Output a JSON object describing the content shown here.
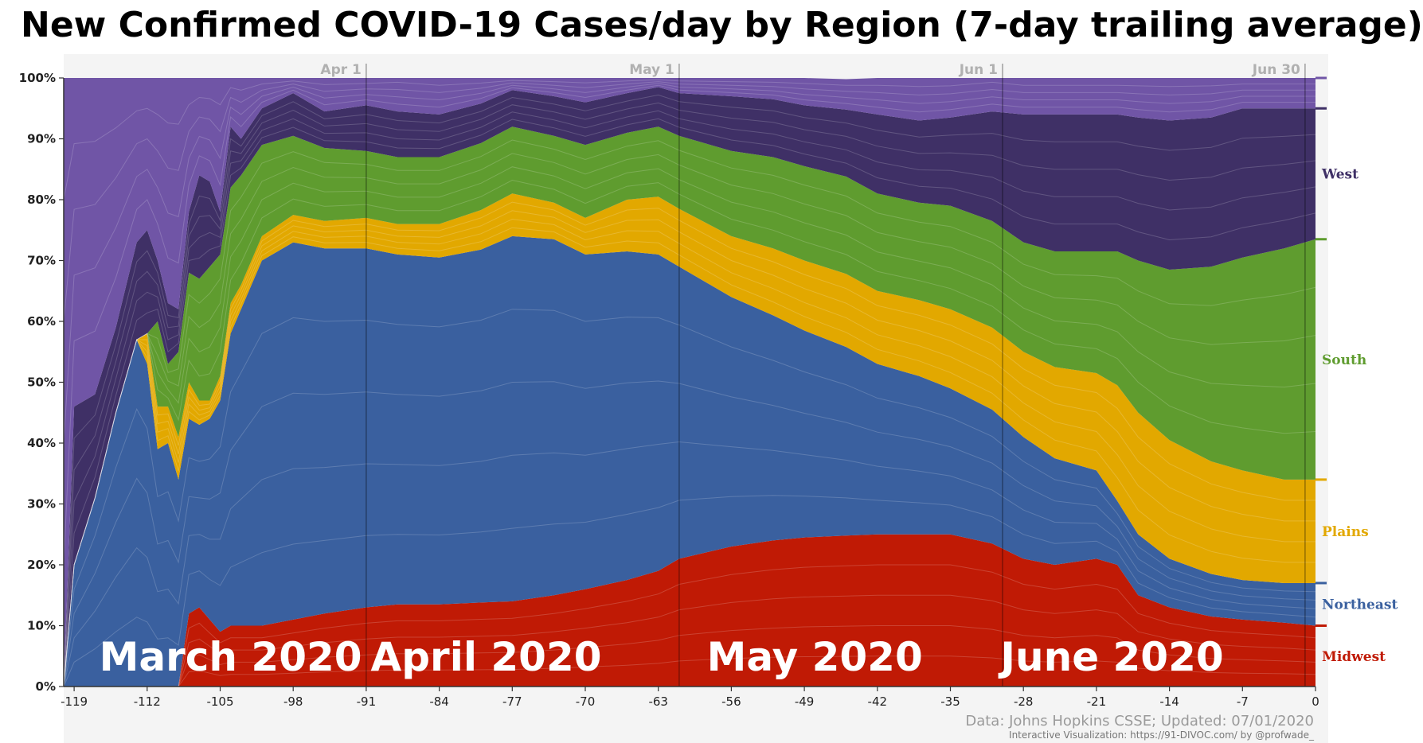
{
  "title": "New Confirmed COVID-19 Cases/day by Region (7-day trailing average)",
  "source": "Data: Johns Hopkins CSSE; Updated: 07/01/2020",
  "credit": "Interactive Visualization: https://91-DIVOC.com/ by @profwade_",
  "month_labels": [
    {
      "text": "March 2020",
      "x": -104
    },
    {
      "text": "April 2020",
      "x": -79.5
    },
    {
      "text": "May 2020",
      "x": -48
    },
    {
      "text": "June 2020",
      "x": -19.5
    }
  ],
  "date_markers": [
    {
      "label": "Apr 1",
      "x": -91
    },
    {
      "label": "May 1",
      "x": -61
    },
    {
      "label": "Jun 1",
      "x": -30
    },
    {
      "label": "Jun 30",
      "x": -1
    }
  ],
  "chart_data": {
    "type": "area",
    "stacked": true,
    "normalized": true,
    "xlabel": "",
    "ylabel": "",
    "xlim": [
      -120,
      0
    ],
    "ylim": [
      0,
      100
    ],
    "xticks": [
      -119,
      -112,
      -105,
      -98,
      -91,
      -84,
      -77,
      -70,
      -63,
      -56,
      -49,
      -42,
      -35,
      -28,
      -21,
      -14,
      -7,
      0
    ],
    "yticks": [
      0,
      10,
      20,
      30,
      40,
      50,
      60,
      70,
      80,
      90,
      100
    ],
    "ytick_labels": [
      "0%",
      "10%",
      "20%",
      "30%",
      "40%",
      "50%",
      "60%",
      "70%",
      "80%",
      "90%",
      "100%"
    ],
    "x": [
      -120,
      -119,
      -117,
      -115,
      -113,
      -112,
      -111,
      -110,
      -109,
      -108,
      -107,
      -106,
      -105,
      -104,
      -103,
      -101,
      -98,
      -95,
      -91,
      -88,
      -84,
      -80,
      -77,
      -73,
      -70,
      -66,
      -63,
      -61,
      -56,
      -52,
      -49,
      -45,
      -42,
      -38,
      -35,
      -31,
      -28,
      -25,
      -21,
      -19,
      -17,
      -14,
      -10,
      -7,
      -3,
      0
    ],
    "series": [
      {
        "name": "Midwest",
        "color": "#c01a05",
        "values": [
          0,
          0,
          0,
          0,
          0,
          0,
          0,
          0,
          0,
          12,
          13,
          11,
          9,
          10,
          10,
          10,
          11,
          12,
          13,
          13.5,
          13.5,
          13.8,
          14,
          15,
          16,
          17.5,
          19,
          21,
          23,
          24,
          24.5,
          24.8,
          25,
          25,
          25,
          23.5,
          21,
          20,
          21,
          20,
          15,
          13,
          11.5,
          11,
          10.5,
          10
        ]
      },
      {
        "name": "Northeast",
        "color": "#3a609f",
        "values": [
          0,
          20,
          31,
          45,
          57,
          53,
          39,
          40,
          34,
          32,
          30,
          33,
          38,
          48,
          52,
          60,
          62,
          60,
          59,
          57.5,
          57,
          58,
          60,
          58.5,
          55,
          54,
          52,
          48,
          41,
          37,
          34,
          31,
          28,
          26,
          24,
          22,
          20,
          17.5,
          14.5,
          10.5,
          10,
          8,
          7,
          6.5,
          6.5,
          7
        ]
      },
      {
        "name": "Plains",
        "color": "#e2a800",
        "values": [
          0,
          0,
          0,
          0,
          0,
          5,
          7,
          6,
          7,
          6,
          4,
          3,
          4,
          5,
          4,
          4,
          4.5,
          4.5,
          5,
          5,
          5.5,
          6.5,
          7,
          6,
          6,
          8.5,
          9.5,
          9.5,
          10,
          11,
          11.5,
          12,
          12,
          12.5,
          13,
          13.5,
          14,
          15,
          16,
          19,
          20,
          19.5,
          18.5,
          18,
          17,
          17
        ]
      },
      {
        "name": "South",
        "color": "#5f9c2f",
        "values": [
          0,
          0,
          0,
          0,
          0,
          0,
          14,
          7,
          14,
          18,
          20,
          22,
          20,
          19,
          18,
          15,
          13,
          12,
          11,
          11,
          11,
          11,
          11,
          11,
          12,
          11,
          11.5,
          12,
          14,
          15,
          15.5,
          16,
          16,
          16,
          17,
          17.5,
          18,
          19,
          20,
          22,
          25,
          28,
          32,
          35,
          38,
          39.5
        ]
      },
      {
        "name": "West",
        "color": "#3f3066",
        "values": [
          0,
          26,
          17,
          14,
          16,
          17,
          10,
          10,
          7,
          10,
          17,
          14,
          7,
          10,
          6,
          6,
          7,
          6,
          7.5,
          7.5,
          7,
          6.5,
          6,
          6.5,
          7,
          6.5,
          6.5,
          7,
          9,
          9.5,
          10,
          11,
          13,
          13.5,
          14.5,
          18,
          21,
          22.5,
          22.5,
          22.5,
          23.5,
          24.5,
          24.5,
          24.5,
          23,
          21.5
        ]
      },
      {
        "name": "",
        "color": "#7055a6",
        "values": [
          100,
          54,
          52,
          41,
          27,
          25,
          30,
          37,
          38,
          22,
          16,
          17,
          22,
          8,
          10,
          5,
          2.5,
          5.5,
          4.5,
          6,
          6,
          4.2,
          2,
          3,
          4,
          2.5,
          1.5,
          2.5,
          3,
          3.5,
          4.5,
          5,
          6,
          7,
          6.5,
          6,
          6,
          6,
          6,
          6,
          6.5,
          7,
          6.5,
          5,
          5,
          5
        ]
      }
    ],
    "end_labels": [
      "West",
      "South",
      "Plains",
      "Northeast",
      "Midwest"
    ]
  }
}
